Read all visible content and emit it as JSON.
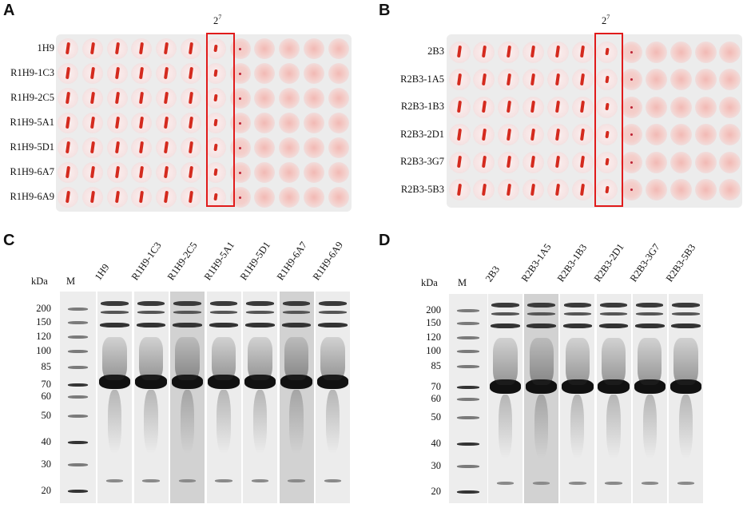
{
  "panels": {
    "A": {
      "letter": "A",
      "exponent_label": {
        "base": "2",
        "exp": "7"
      },
      "rows": [
        "1H9",
        "R1H9-1C3",
        "R1H9-2C5",
        "R1H9-5A1",
        "R1H9-5D1",
        "R1H9-6A7",
        "R1H9-6A9"
      ],
      "columns": 12,
      "highlighted_column": 7
    },
    "B": {
      "letter": "B",
      "exponent_label": {
        "base": "2",
        "exp": "7"
      },
      "rows": [
        "2B3",
        "R2B3-1A5",
        "R2B3-1B3",
        "R2B3-2D1",
        "R2B3-3G7",
        "R2B3-5B3"
      ],
      "columns": 12,
      "highlighted_column": 7
    },
    "C": {
      "letter": "C",
      "unit": "kDa",
      "marker_label": "M",
      "lanes": [
        "1H9",
        "R1H9-1C3",
        "R1H9-2C5",
        "R1H9-5A1",
        "R1H9-5D1",
        "R1H9-6A7",
        "R1H9-6A9"
      ],
      "mw_markers": [
        "200",
        "150",
        "120",
        "100",
        "85",
        "70",
        "60",
        "50",
        "40",
        "30",
        "20"
      ]
    },
    "D": {
      "letter": "D",
      "unit": "kDa",
      "marker_label": "M",
      "lanes": [
        "2B3",
        "R2B3-1A5",
        "R2B3-1B3",
        "R2B3-2D1",
        "R2B3-3G7",
        "R2B3-5B3"
      ],
      "mw_markers": [
        "200",
        "150",
        "120",
        "100",
        "85",
        "70",
        "60",
        "50",
        "40",
        "30",
        "20"
      ]
    }
  },
  "colors": {
    "highlight": "#e01b1b",
    "button_red": "#d42a1e",
    "diffuse_pink": "#f2b9b4",
    "plate_bg": "#eeeeee"
  }
}
